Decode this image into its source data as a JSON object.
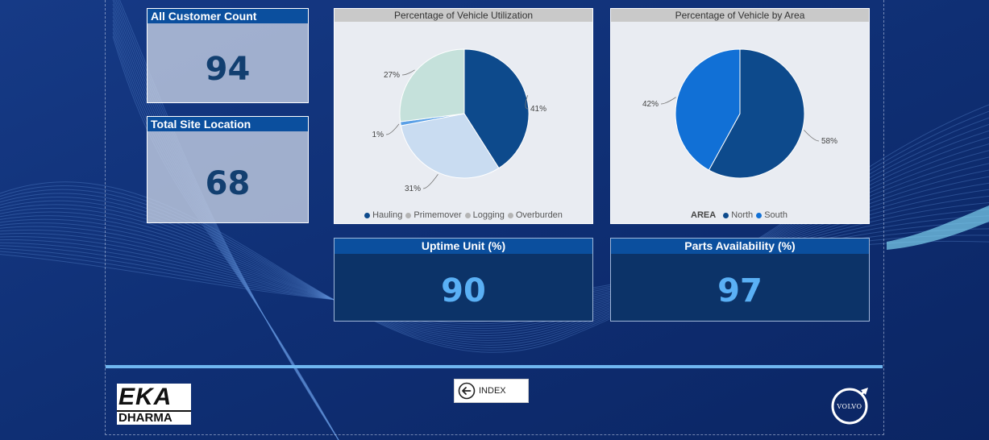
{
  "kpis": {
    "all_customer_count": {
      "label": "All Customer Count",
      "value": "94"
    },
    "total_site_location": {
      "label": "Total Site Location",
      "value": "68"
    },
    "uptime_unit": {
      "label": "Uptime Unit (%)",
      "value": "90"
    },
    "parts_availability": {
      "label": "Parts Availability (%)",
      "value": "97"
    }
  },
  "chart_data": [
    {
      "type": "pie",
      "title": "Percentage of Vehicle Utilization",
      "categories": [
        "Hauling",
        "Primemover",
        "Logging",
        "Overburden"
      ],
      "values": [
        41,
        31,
        1,
        27
      ],
      "data_labels": [
        "41%",
        "31%",
        "1%",
        "27%"
      ],
      "colors": [
        "#0d4a8c",
        "#c9dcf1",
        "#5aa0e6",
        "#c5e1db"
      ],
      "legend_colors": [
        "#0d4a8c",
        "#b4b4b4",
        "#b4b4b4",
        "#b4b4b4"
      ],
      "legend_placement": "bottom"
    },
    {
      "type": "pie",
      "title": "Percentage of Vehicle by Area",
      "categories": [
        "North",
        "South"
      ],
      "values": [
        58,
        42
      ],
      "data_labels": [
        "58%",
        "42%"
      ],
      "colors": [
        "#0d4a8c",
        "#1170d6"
      ],
      "legend_title": "AREA",
      "legend_placement": "bottom"
    }
  ],
  "nav": {
    "index_label": "INDEX"
  },
  "logos": {
    "company": {
      "line1": "EKA",
      "line2": "DHARMA"
    },
    "brand": {
      "text": "VOLVO"
    }
  },
  "colors": {
    "accent": "#0b4f9e",
    "divider": "#6fb6f0",
    "background": "#0e2a6b"
  }
}
